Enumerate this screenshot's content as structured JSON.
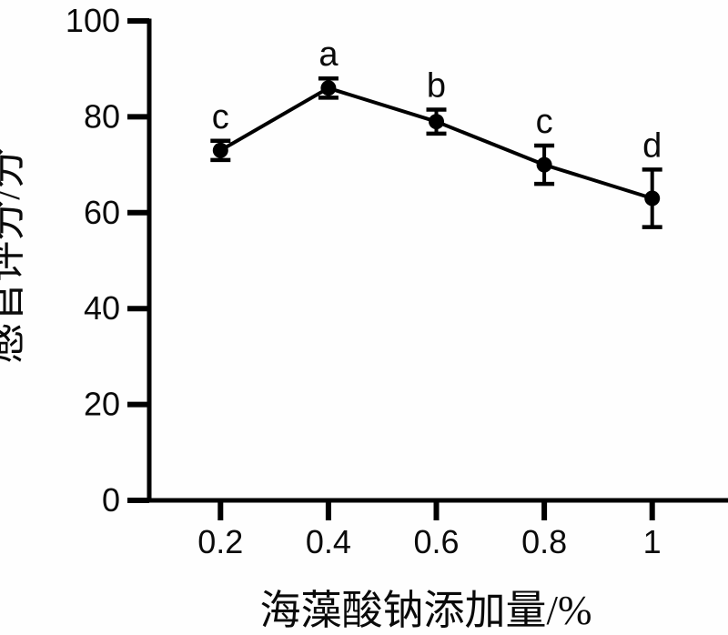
{
  "chart_data": {
    "type": "line",
    "title": "",
    "xlabel": "海藻酸钠添加量/%",
    "ylabel": "感官评分/分",
    "x": [
      0.2,
      0.4,
      0.6,
      0.8,
      1
    ],
    "x_tick_labels": [
      "0.2",
      "0.4",
      "0.6",
      "0.8",
      "1"
    ],
    "y_ticks": [
      0,
      20,
      40,
      60,
      80,
      100
    ],
    "ylim": [
      0,
      100
    ],
    "series": [
      {
        "name": "感官评分",
        "values": [
          73,
          86,
          79,
          70,
          63
        ],
        "errors": [
          2,
          2,
          2.5,
          4,
          6
        ],
        "point_labels": [
          "c",
          "a",
          "b",
          "c",
          "d"
        ]
      }
    ],
    "grid": false,
    "legend_position": "none",
    "marker": "filled-circle",
    "error_bars": true,
    "colors": {
      "line": "#000000",
      "marker": "#000000",
      "text": "#0a0a0a",
      "background": "#ffffff"
    }
  }
}
